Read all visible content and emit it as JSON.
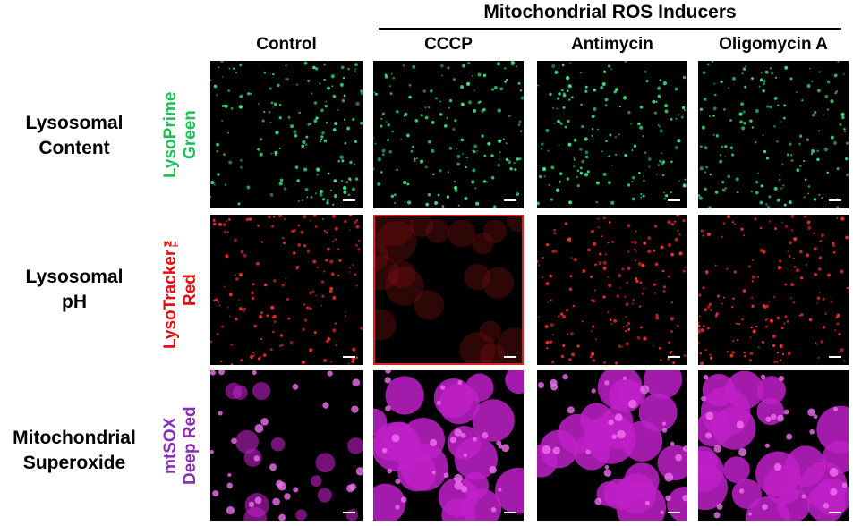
{
  "header": {
    "title": "Mitochondrial ROS Inducers"
  },
  "columns": [
    "Control",
    "CCCP",
    "Antimycin",
    "Oligomycin A"
  ],
  "rows": [
    {
      "label": "Lysosomal\nContent",
      "stain": "LysoPrime\nGreen"
    },
    {
      "label": "Lysosomal\npH",
      "stain": "LysoTracker™\nRed"
    },
    {
      "label": "Mitochondrial\nSuperoxide",
      "stain": "mtSOX\nDeep Red"
    }
  ]
}
